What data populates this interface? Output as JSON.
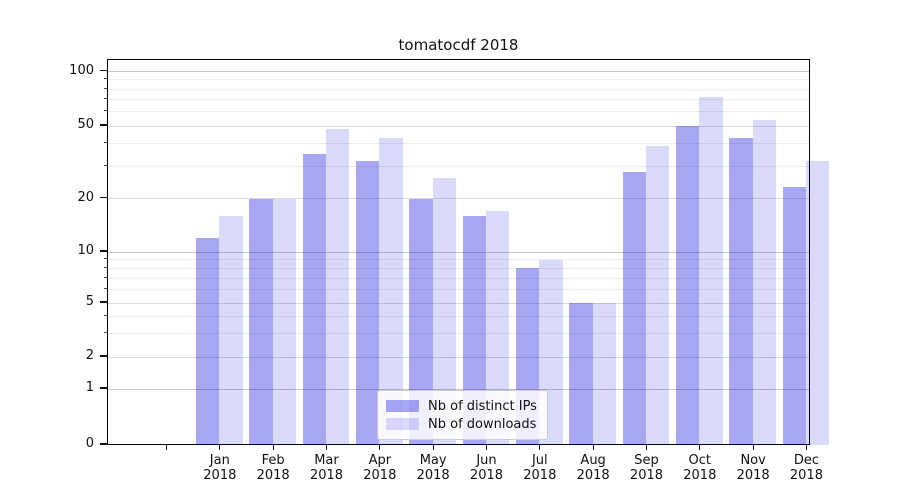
{
  "chart_data": {
    "type": "bar",
    "title": "tomatocdf 2018",
    "categories": [
      "Jan",
      "Feb",
      "Mar",
      "Apr",
      "May",
      "Jun",
      "Jul",
      "Aug",
      "Sep",
      "Oct",
      "Nov",
      "Dec"
    ],
    "xtick_year": "2018",
    "series": [
      {
        "name": "Nb of distinct IPs",
        "color": "rgba(10,10,225,0.36)",
        "values": [
          12,
          20,
          35,
          32,
          20,
          16,
          8,
          5,
          28,
          50,
          43,
          23
        ]
      },
      {
        "name": "Nb of downloads",
        "color": "rgba(10,10,225,0.15)",
        "values": [
          16,
          20,
          48,
          43,
          26,
          17,
          9,
          5,
          39,
          72,
          54,
          32
        ]
      }
    ],
    "yticks": [
      0,
      1,
      2,
      5,
      10,
      20,
      50,
      100
    ],
    "minor_gridline_values": [
      3,
      4,
      6,
      7,
      8,
      9,
      30,
      40,
      60,
      70,
      80,
      90
    ],
    "decade_gridline_values": [
      1,
      10,
      100
    ],
    "ylim": [
      0,
      120
    ],
    "grid": true,
    "legend_position": "lower center",
    "legend_entries": [
      "Nb of distinct IPs",
      "Nb of downloads"
    ]
  },
  "colors": {
    "bar_distinct_ips": "#a6a6f4",
    "bar_downloads": "#d9d9f9",
    "grid_decade": "#c6c6c6",
    "grid_major": "#dadada",
    "grid_minor": "#ececec",
    "spine": "#000000"
  }
}
